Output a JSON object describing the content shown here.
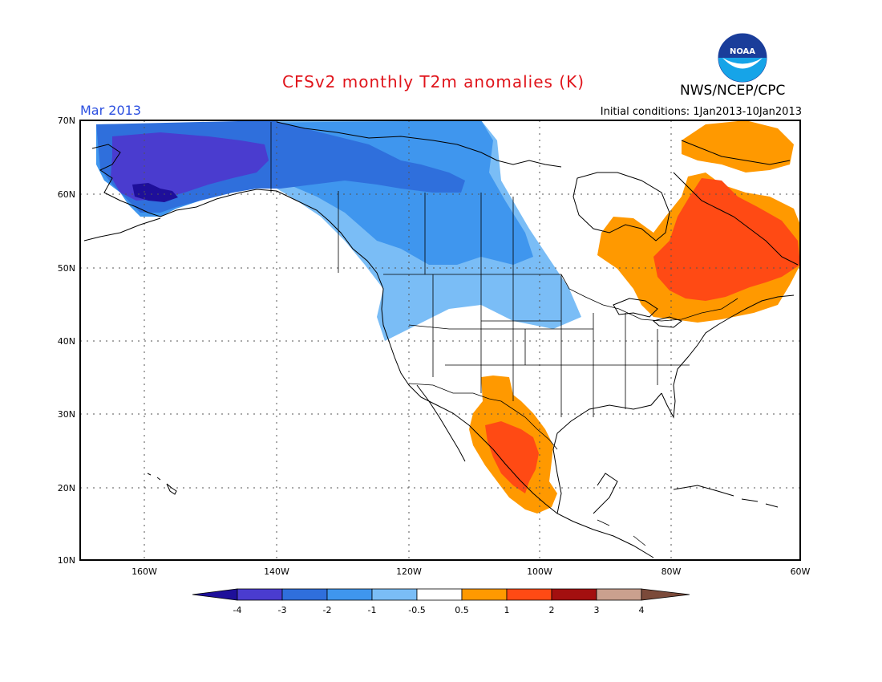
{
  "header": {
    "title": "CFSv2 monthly T2m anomalies (K)",
    "period": "Mar 2013",
    "initial_conditions": "Initial conditions: 1Jan2013-10Jan2013",
    "agency": "NWS/NCEP/CPC",
    "logo_text": "NOAA"
  },
  "map": {
    "lat_labels": [
      "70N",
      "60N",
      "50N",
      "40N",
      "30N",
      "20N",
      "10N"
    ],
    "lon_labels": [
      "160W",
      "140W",
      "120W",
      "100W",
      "80W",
      "60W"
    ],
    "regions": [
      {
        "name": "alaska-anomaly",
        "level": "-3 to -4"
      },
      {
        "name": "western-canada-anomaly",
        "level": "-1 to -3"
      },
      {
        "name": "eastern-canada-anomaly",
        "level": "0.5 to 2"
      },
      {
        "name": "mexico-anomaly",
        "level": "0.5 to 2"
      }
    ]
  },
  "colorbar": {
    "labels": [
      "-4",
      "-3",
      "-2",
      "-1",
      "-0.5",
      "0.5",
      "1",
      "2",
      "3",
      "4"
    ],
    "colors": {
      "lt_m4": "#1e0f9a",
      "m4_m3": "#4a3ccf",
      "m3_m2": "#2f6fdc",
      "m2_m1": "#3f96ee",
      "m1_m05": "#7abdf6",
      "neutral": "#ffffff",
      "p05_p1": "#ff9900",
      "p1_p2": "#ff4a14",
      "p2_p3": "#a30f0f",
      "p3_p4": "#caa08e",
      "gt_p4": "#7b4a3a"
    }
  }
}
